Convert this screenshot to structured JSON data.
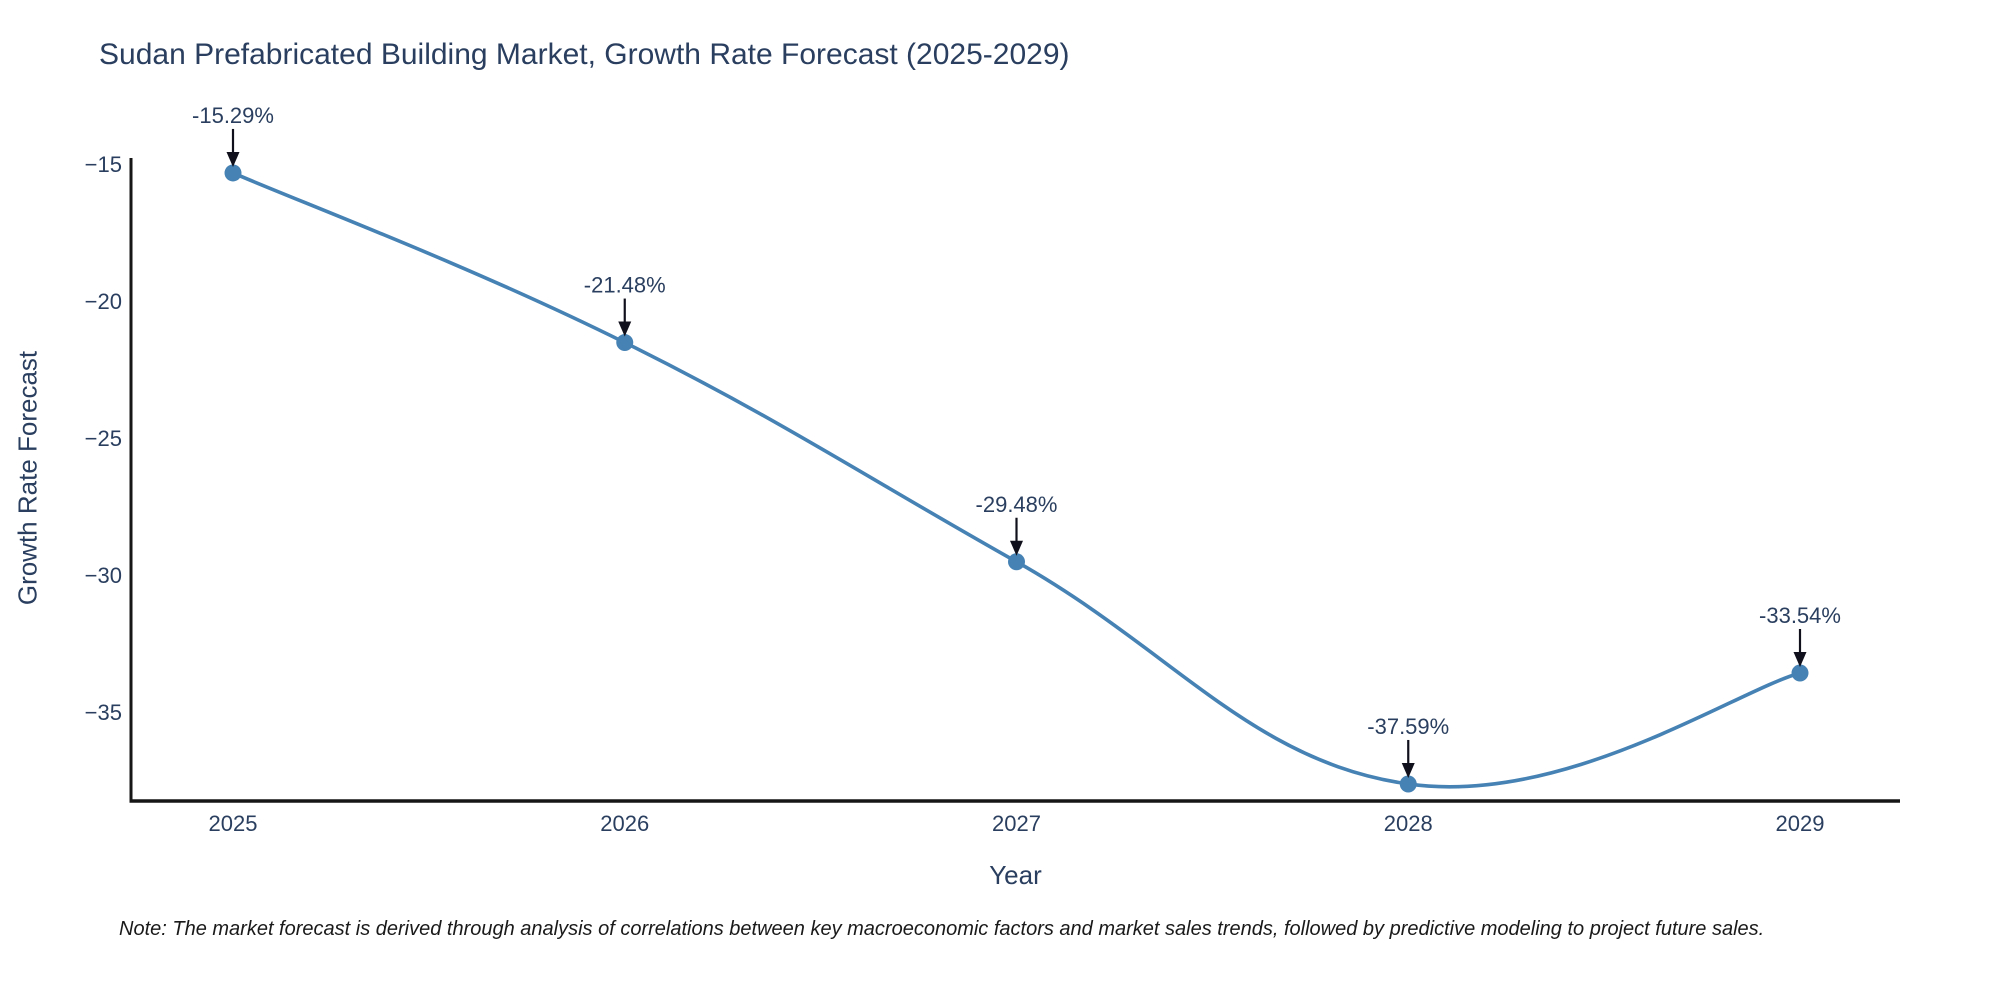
{
  "title": "Sudan Prefabricated Building Market, Growth Rate Forecast (2025-2029)",
  "note": "Note: The market forecast is derived through analysis of correlations between key macroeconomic factors and market sales trends, followed by predictive modeling to project future sales.",
  "chart_data": {
    "type": "line",
    "title": "Sudan Prefabricated Building Market, Growth Rate Forecast (2025-2029)",
    "xlabel": "Year",
    "ylabel": "Growth Rate Forecast",
    "x": [
      2025,
      2026,
      2027,
      2028,
      2029
    ],
    "values": [
      -15.29,
      -21.48,
      -29.48,
      -37.59,
      -33.54
    ],
    "point_labels": [
      "-15.29%",
      "-21.48%",
      "-29.48%",
      "-37.59%",
      "-33.54%"
    ],
    "yticks": [
      -15,
      -20,
      -25,
      -30,
      -35
    ],
    "ylim": [
      -38.2,
      -14.75
    ],
    "xlim": [
      2024.74,
      2029.26
    ],
    "grid": false,
    "legend": false,
    "line_shape": "spline",
    "annotations_arrows": true
  },
  "colors": {
    "line": "#4682b4",
    "marker": "#4682b4",
    "axis": "#161616",
    "text": "#2a3f5f",
    "arrow": "#10101c",
    "note": "#1a1a1a",
    "background": "#ffffff"
  }
}
